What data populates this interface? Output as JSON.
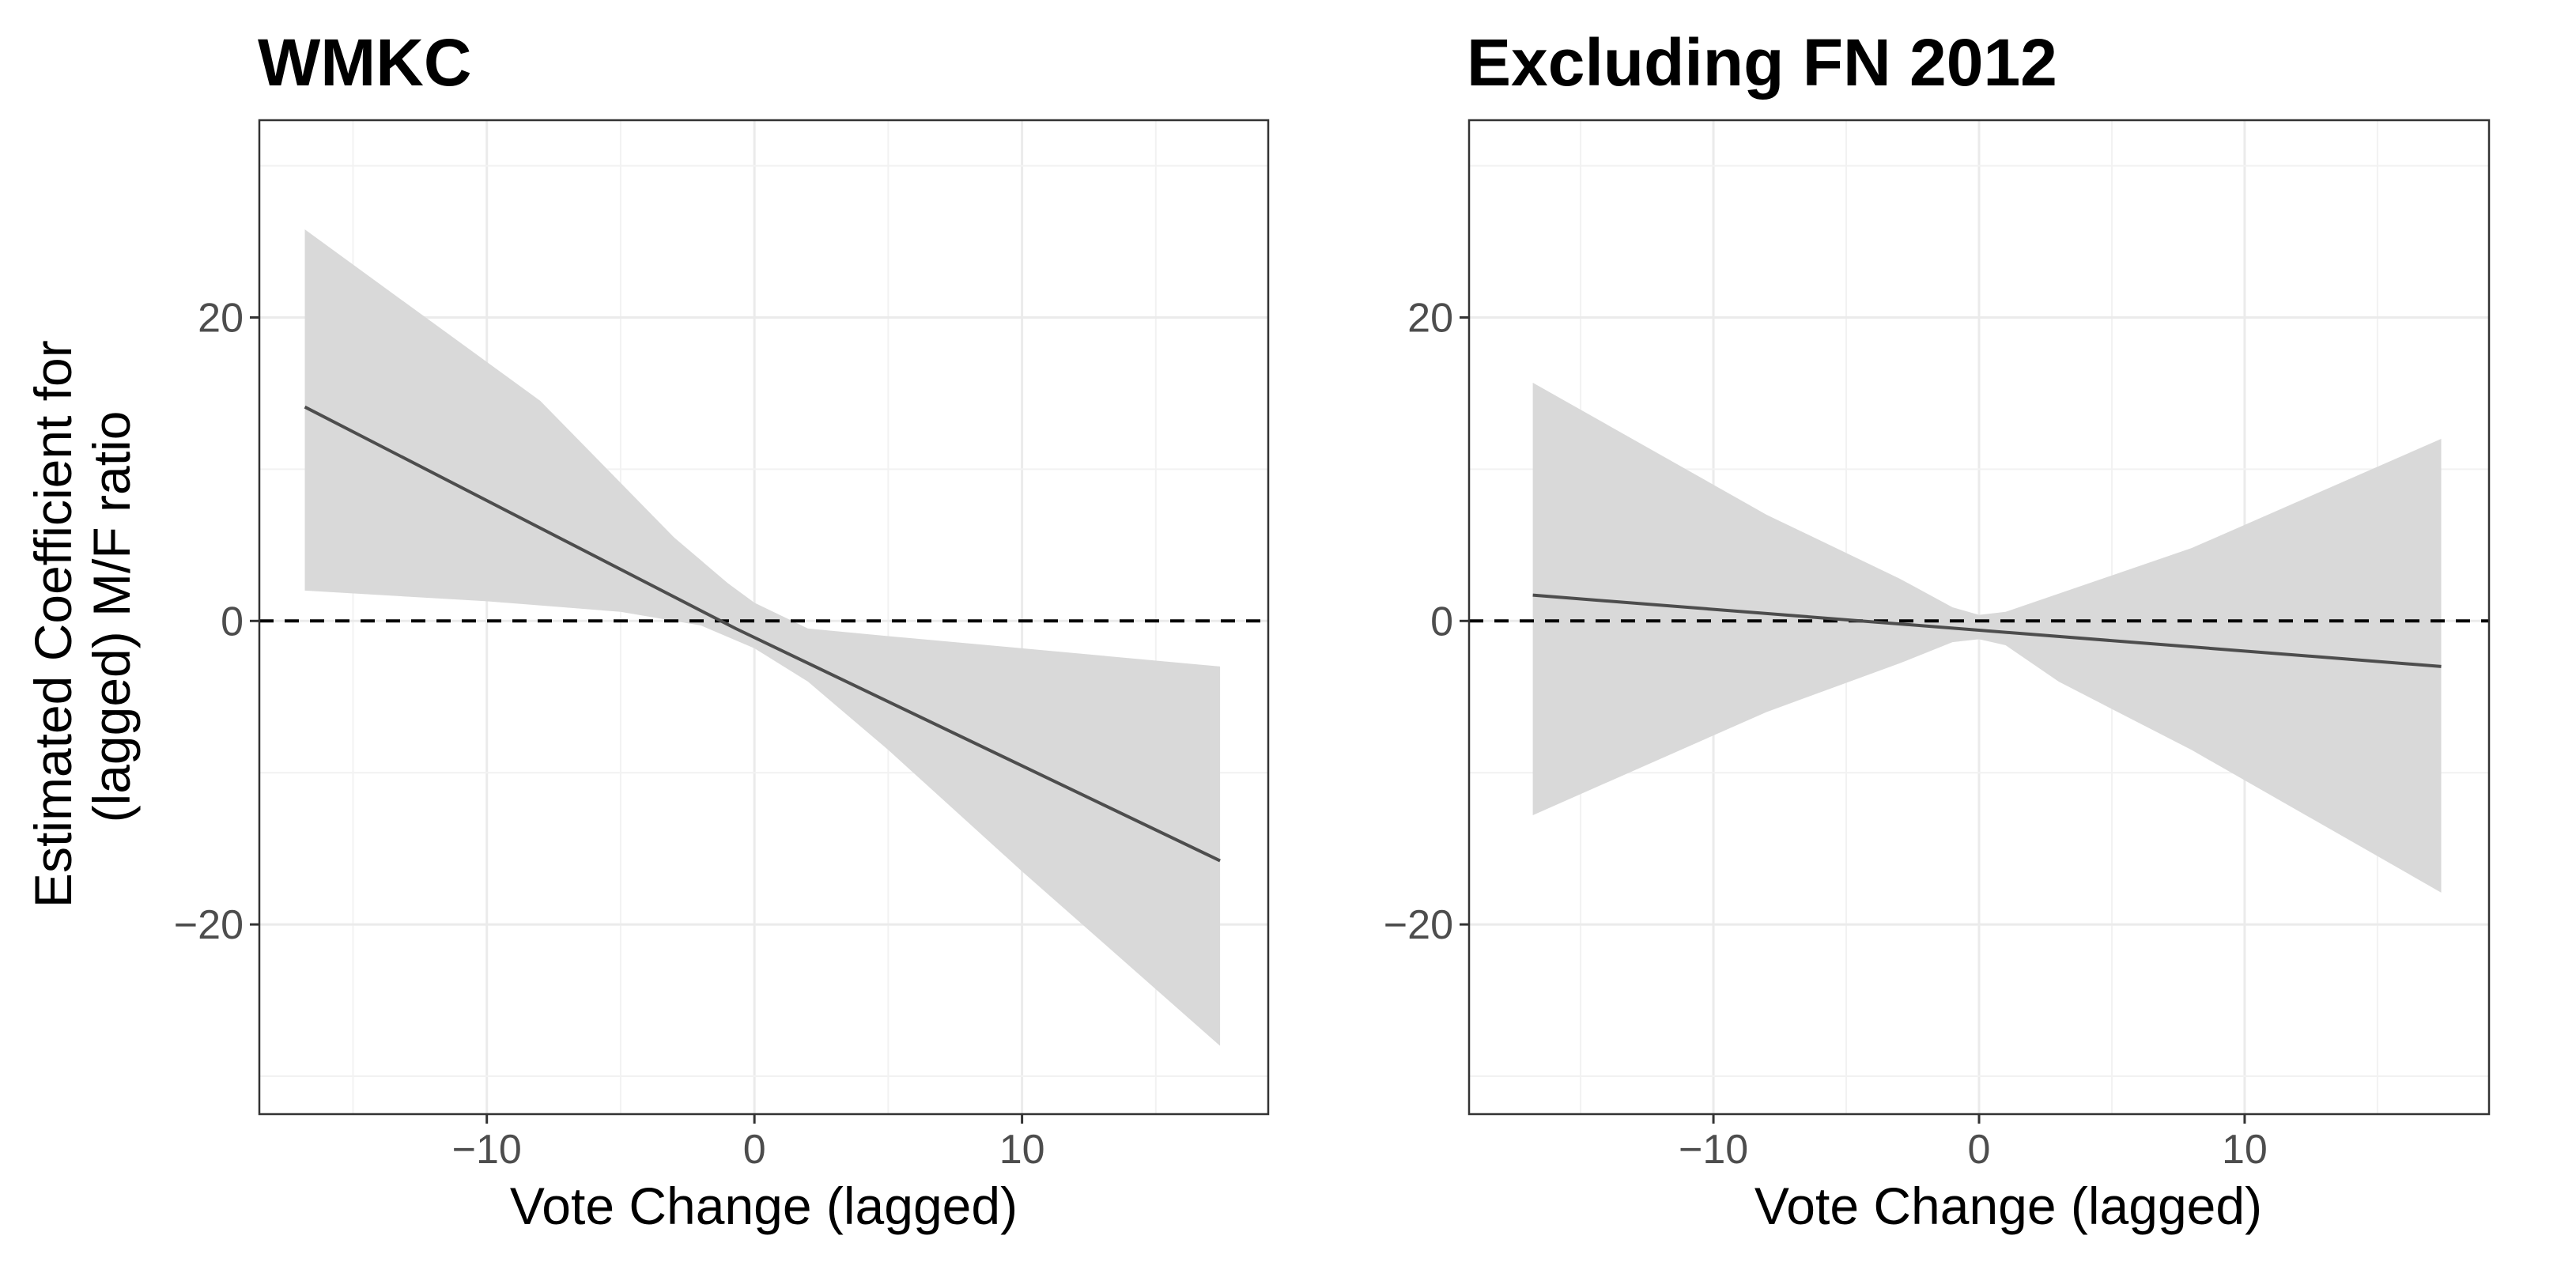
{
  "chart_data": [
    {
      "type": "line",
      "title": "WMKC",
      "xlabel": "Vote Change (lagged)",
      "ylabel": "Estimated Coefficient for (lagged) M/F ratio",
      "ylabel_lines": [
        "Estimated Coefficient for",
        "(lagged) M/F ratio"
      ],
      "xlim": [
        -18.5,
        19.2
      ],
      "ylim": [
        -32.5,
        33
      ],
      "x_ticks": [
        -10,
        0,
        10
      ],
      "x_tick_labels": [
        "−10",
        "0",
        "10"
      ],
      "y_ticks": [
        -20,
        0,
        20
      ],
      "y_tick_labels": [
        "−20",
        "0",
        "20"
      ],
      "grid": true,
      "reference_line": {
        "y": 0,
        "style": "dashed"
      },
      "series": [
        {
          "values": [
            [
              -16.8,
              14.1
            ],
            [
              -0.7,
              -0.5
            ],
            [
              17.4,
              -15.8
            ]
          ],
          "band": {
            "upper": [
              [
                -16.8,
                25.8
              ],
              [
                -8,
                14.5
              ],
              [
                -3,
                5.5
              ],
              [
                -1,
                2.5
              ],
              [
                0,
                1.2
              ],
              [
                2,
                -0.5
              ],
              [
                5,
                -1.0
              ],
              [
                10,
                -1.8
              ],
              [
                17.4,
                -3.0
              ]
            ],
            "lower": [
              [
                -16.8,
                2.0
              ],
              [
                -10,
                1.3
              ],
              [
                -5,
                0.6
              ],
              [
                -2,
                -0.3
              ],
              [
                0,
                -1.8
              ],
              [
                2,
                -4.0
              ],
              [
                5,
                -8.5
              ],
              [
                10,
                -16.5
              ],
              [
                17.4,
                -28.0
              ]
            ]
          }
        }
      ]
    },
    {
      "type": "line",
      "title": "Excluding FN 2012",
      "xlabel": "Vote Change (lagged)",
      "ylabel": "",
      "xlim": [
        -19.2,
        19.2
      ],
      "ylim": [
        -32.5,
        33
      ],
      "x_ticks": [
        -10,
        0,
        10
      ],
      "x_tick_labels": [
        "−10",
        "0",
        "10"
      ],
      "y_ticks": [
        -20,
        0,
        20
      ],
      "y_tick_labels": [
        "−20",
        "0",
        "20"
      ],
      "grid": true,
      "reference_line": {
        "y": 0,
        "style": "dashed"
      },
      "series": [
        {
          "values": [
            [
              -16.8,
              1.7
            ],
            [
              17.4,
              -3.0
            ]
          ],
          "band": {
            "upper": [
              [
                -16.8,
                15.7
              ],
              [
                -8,
                7.0
              ],
              [
                -3,
                2.8
              ],
              [
                -1,
                0.9
              ],
              [
                0,
                0.4
              ],
              [
                1,
                0.6
              ],
              [
                3,
                1.8
              ],
              [
                8,
                4.8
              ],
              [
                17.4,
                12.0
              ]
            ],
            "lower": [
              [
                -16.8,
                -12.8
              ],
              [
                -8,
                -6.0
              ],
              [
                -3,
                -2.8
              ],
              [
                -1,
                -1.4
              ],
              [
                0,
                -1.2
              ],
              [
                1,
                -1.6
              ],
              [
                3,
                -4.0
              ],
              [
                8,
                -8.5
              ],
              [
                17.4,
                -17.9
              ]
            ]
          }
        }
      ]
    }
  ]
}
